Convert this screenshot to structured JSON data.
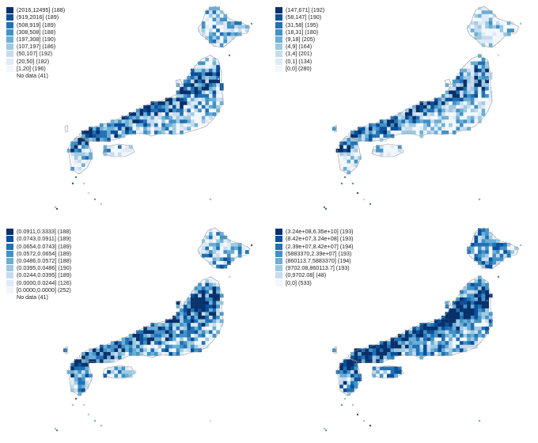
{
  "panels": [
    {
      "legend": [
        {
          "label": "(2016,12495] (188)",
          "color": "#08306b"
        },
        {
          "label": "(919,2016] (189)",
          "color": "#08519c"
        },
        {
          "label": "(508,919] (189)",
          "color": "#2171b5"
        },
        {
          "label": "(308,508] (188)",
          "color": "#4292c6"
        },
        {
          "label": "(197,308] (190)",
          "color": "#6baed6"
        },
        {
          "label": "(107,197] (186)",
          "color": "#9ecae1"
        },
        {
          "label": "(50,107] (192)",
          "color": "#c6dbef"
        },
        {
          "label": "(20,50] (182)",
          "color": "#deebf7"
        },
        {
          "label": "[1,20] (196)",
          "color": "#f2f7fc"
        },
        {
          "label": "No data (41)",
          "color": "#ffffff"
        }
      ]
    },
    {
      "legend": [
        {
          "label": "(147,671] (192)",
          "color": "#08306b"
        },
        {
          "label": "(58,147] (190)",
          "color": "#08519c"
        },
        {
          "label": "(31,58] (195)",
          "color": "#2171b5"
        },
        {
          "label": "(18,31] (180)",
          "color": "#4292c6"
        },
        {
          "label": "(9,18] (205)",
          "color": "#6baed6"
        },
        {
          "label": "(4,9] (164)",
          "color": "#9ecae1"
        },
        {
          "label": "(1,4] (201)",
          "color": "#c6dbef"
        },
        {
          "label": "(0,1] (134)",
          "color": "#deebf7"
        },
        {
          "label": "[0,0] (280)",
          "color": "#f2f7fc"
        }
      ]
    },
    {
      "legend": [
        {
          "label": "(0.0911,0.3333] (188)",
          "color": "#08306b"
        },
        {
          "label": "(0.0743,0.0911] (189)",
          "color": "#08519c"
        },
        {
          "label": "(0.0654,0.0743] (189)",
          "color": "#2171b5"
        },
        {
          "label": "(0.0572,0.0654] (189)",
          "color": "#4292c6"
        },
        {
          "label": "(0.0486,0.0572] (188)",
          "color": "#6baed6"
        },
        {
          "label": "(0.0395,0.0486] (190)",
          "color": "#9ecae1"
        },
        {
          "label": "(0.0244,0.0395] (189)",
          "color": "#c6dbef"
        },
        {
          "label": "(0.0000,0.0244] (126)",
          "color": "#deebf7"
        },
        {
          "label": "[0.0000,0.0000] (252)",
          "color": "#f2f7fc"
        },
        {
          "label": "No data (41)",
          "color": "#ffffff"
        }
      ]
    },
    {
      "legend": [
        {
          "label": "(3.24e+08,6.35e+10] (193)",
          "color": "#08306b"
        },
        {
          "label": "(8.42e+07,3.24e+08] (193)",
          "color": "#08519c"
        },
        {
          "label": "(2.39e+07,8.42e+07] (194)",
          "color": "#2171b5"
        },
        {
          "label": "(5883370,2.39e+07] (193)",
          "color": "#4292c6"
        },
        {
          "label": "(860113.7,5883370] (194)",
          "color": "#6baed6"
        },
        {
          "label": "(9702.08,860113.7] (193)",
          "color": "#9ecae1"
        },
        {
          "label": "(0,9702.08] (48)",
          "color": "#c6dbef"
        },
        {
          "label": "[0,0] (533)",
          "color": "#f2f7fc"
        }
      ]
    }
  ],
  "map_style": {
    "outline_color": "#9a9a9a",
    "fill_bias": [
      0.45,
      0.35,
      0.62,
      0.68
    ]
  }
}
